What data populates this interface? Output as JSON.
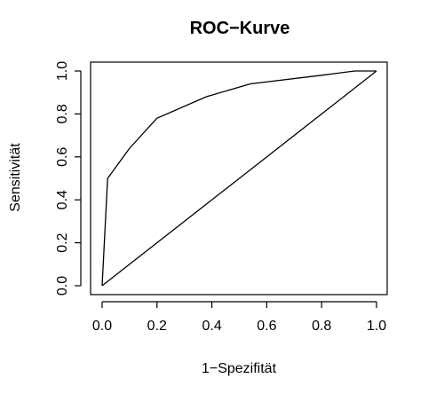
{
  "chart_data": {
    "type": "line",
    "title": "ROC−Kurve",
    "xlabel": "1−Spezifität",
    "ylabel": "Sensitivität",
    "xlim": [
      0,
      1
    ],
    "ylim": [
      0,
      1
    ],
    "xticks": [
      0.0,
      0.2,
      0.4,
      0.6,
      0.8,
      1.0
    ],
    "xtick_labels": [
      "0.0",
      "0.2",
      "0.4",
      "0.6",
      "0.8",
      "1.0"
    ],
    "yticks": [
      0.0,
      0.2,
      0.4,
      0.6,
      0.8,
      1.0
    ],
    "ytick_labels": [
      "0.0",
      "0.2",
      "0.4",
      "0.6",
      "0.8",
      "1.0"
    ],
    "grid": false,
    "series": [
      {
        "x": [
          0.0,
          0.02,
          0.1,
          0.2,
          0.38,
          0.54,
          0.8,
          0.92,
          1.0
        ],
        "y": [
          0.0,
          0.5,
          0.64,
          0.78,
          0.88,
          0.94,
          0.98,
          1.0,
          1.0
        ]
      },
      {
        "x": [
          0.0,
          1.0
        ],
        "y": [
          0.0,
          1.0
        ]
      }
    ]
  }
}
